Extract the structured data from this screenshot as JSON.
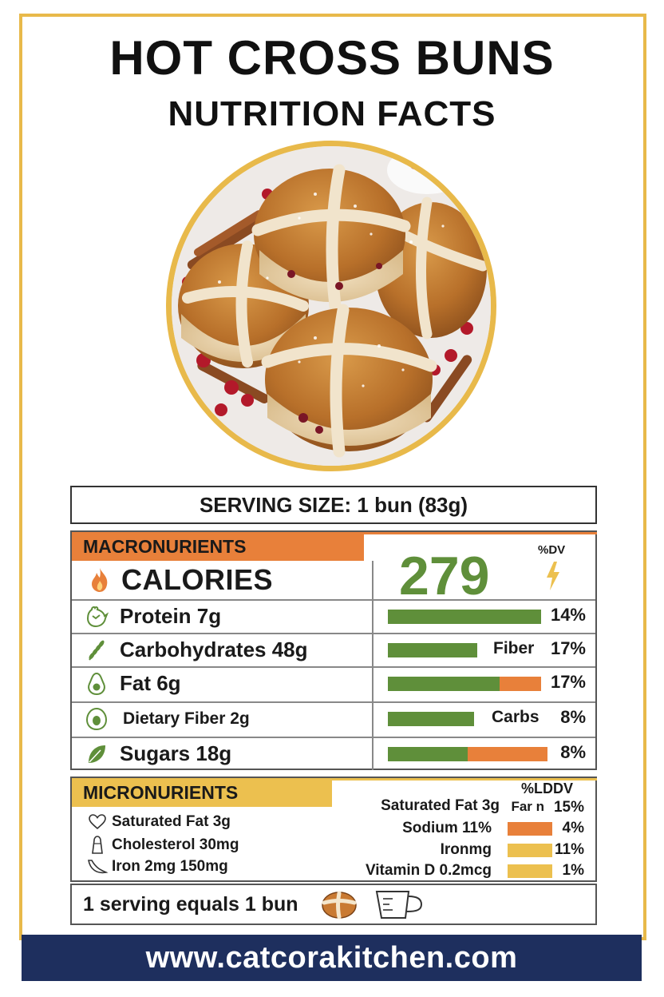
{
  "title_line1": "HOT CROSS BUNS",
  "title_line2": "NUTRITION FACTS",
  "serving": "SERVING SIZE: 1 bun (83g)",
  "macros": {
    "header": "MACRONURIENTS",
    "calories_label": "CALORIES",
    "calories_value": "279",
    "dv_label": "%DV",
    "rows": [
      {
        "label": "Protein 7g",
        "side_label": "",
        "pct": "14%",
        "green": 1.0,
        "orange": 0.0
      },
      {
        "label": "Carbohydrates 48g",
        "side_label": "Fiber",
        "pct": "17%",
        "green": 1.0,
        "orange": 0.0
      },
      {
        "label": "Fat 6g",
        "side_label": "",
        "pct": "17%",
        "green": 0.73,
        "orange": 0.27
      },
      {
        "label": "Dietary Fiber 2g",
        "side_label": "Carbs",
        "pct": "8%",
        "green": 1.0,
        "orange": 0.0
      },
      {
        "label": "Sugars 18g",
        "side_label": "",
        "pct": "8%",
        "green": 0.5,
        "orange": 0.5
      }
    ]
  },
  "micros": {
    "header": "MICRONURIENTS",
    "ldv_label": "%LDDV",
    "left": [
      {
        "label": "Saturated Fat 3g"
      },
      {
        "label": "Cholesterol 30mg"
      },
      {
        "label": "Iron      2mg 150mg"
      }
    ],
    "right": [
      {
        "label": "Saturated Fat 3g",
        "extra": "Far n",
        "pct": "15%",
        "bar_color": ""
      },
      {
        "label": "Sodium 11%",
        "extra": "",
        "pct": "4%",
        "bar_color": "#e8803a"
      },
      {
        "label": "Ironmg",
        "extra": "",
        "pct": "11%",
        "bar_color": "#ecc04f"
      },
      {
        "label": "Vitamin D 0.2mcg",
        "extra": "",
        "pct": "1%",
        "bar_color": "#ecc04f"
      }
    ]
  },
  "footer_note": "1 serving equals 1 bun",
  "website": "www.catcorakitchen.com",
  "colors": {
    "gold": "#e8b94a",
    "orange": "#e8803a",
    "green": "#5f8f3a",
    "navy": "#1e2f5e"
  }
}
